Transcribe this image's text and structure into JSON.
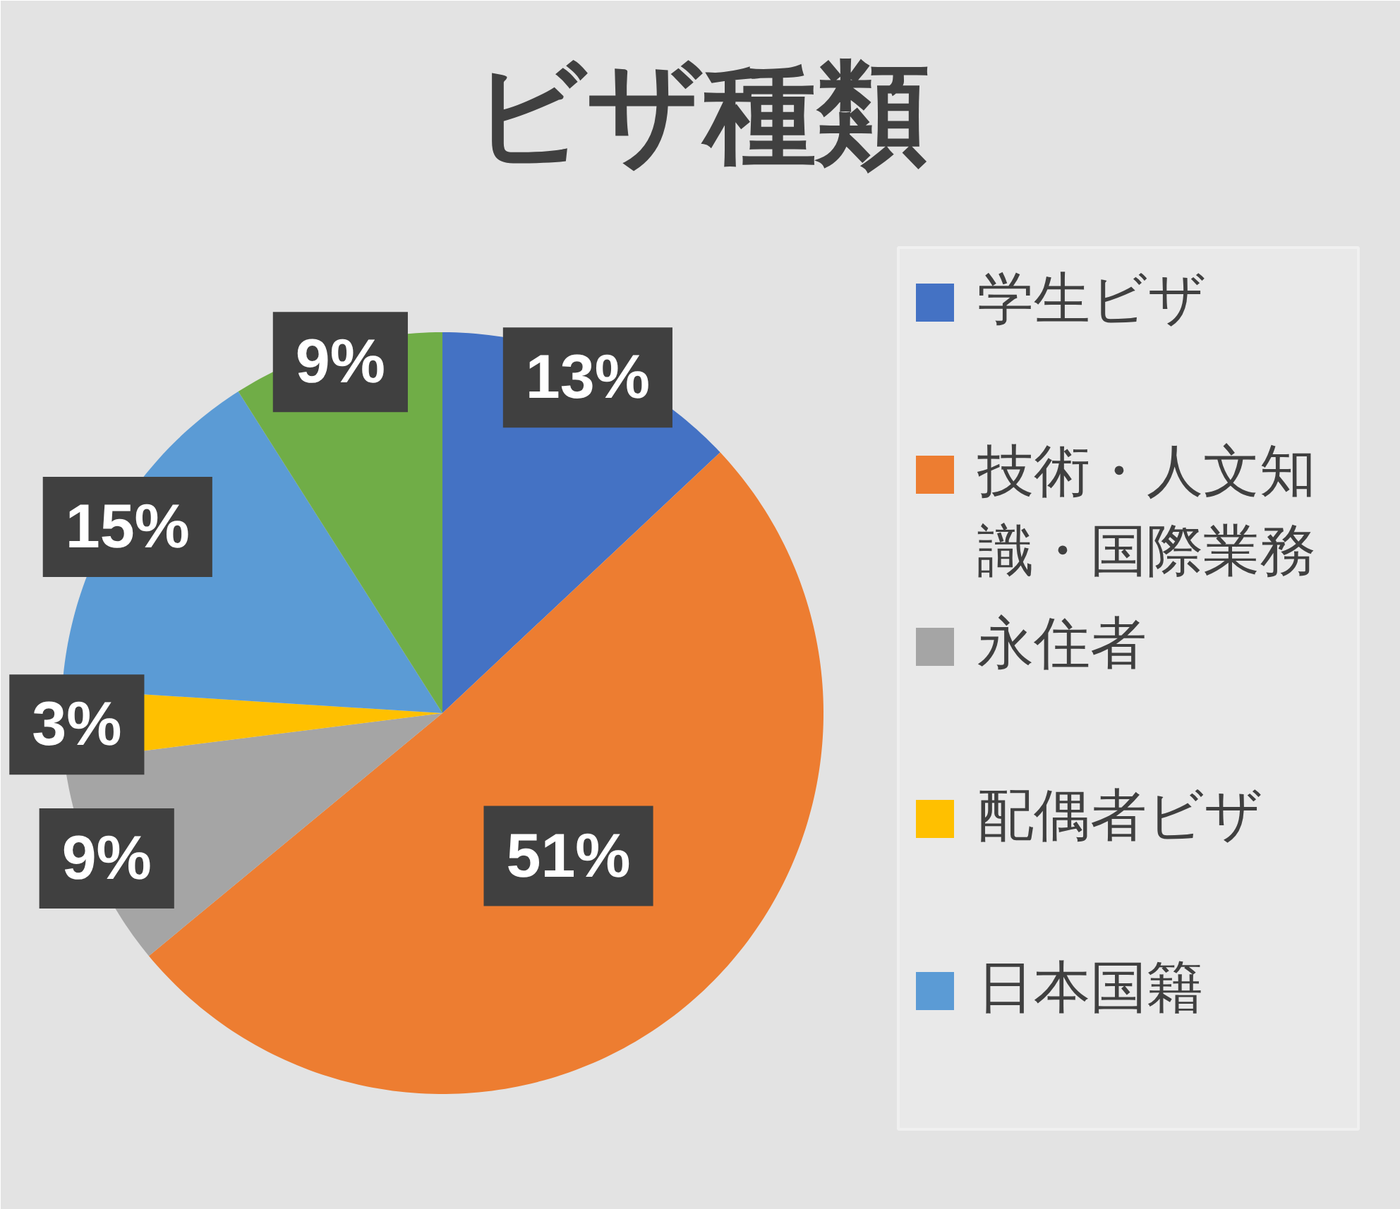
{
  "chart_data": {
    "type": "pie",
    "title": "ビザ種類",
    "categories": [
      "学生ビザ",
      "技術・人文知識・国際業務",
      "永住者",
      "配偶者ビザ",
      "日本国籍",
      null
    ],
    "values": [
      13,
      51,
      9,
      3,
      15,
      9
    ],
    "colors": [
      "#4472c4",
      "#ed7d31",
      "#a5a5a5",
      "#ffc000",
      "#5b9bd5",
      "#70ad47"
    ],
    "value_labels": [
      "13%",
      "51%",
      "9%",
      "3%",
      "15%",
      "9%"
    ],
    "legend": "right"
  }
}
